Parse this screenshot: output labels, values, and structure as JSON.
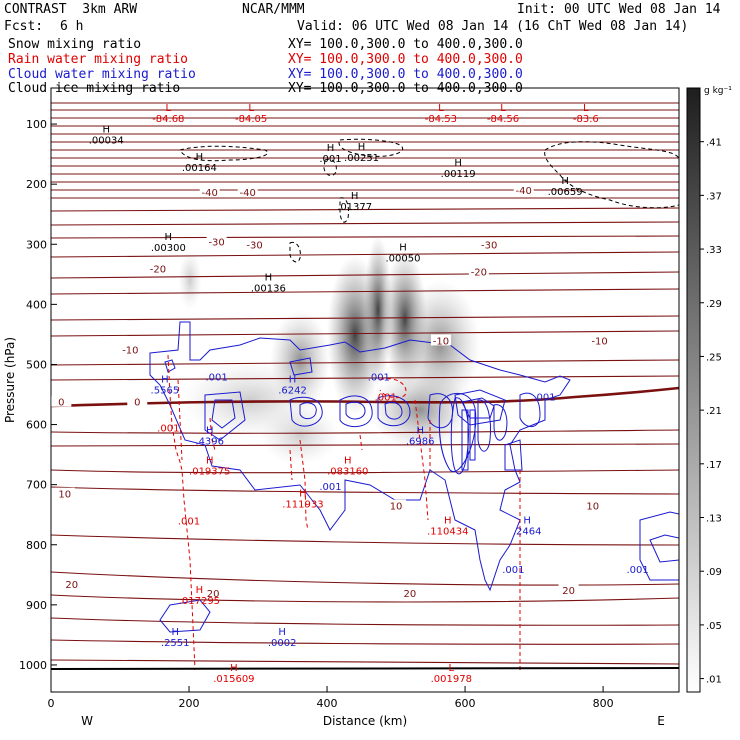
{
  "header": {
    "model": "CONTRAST  3km ARW",
    "center": "NCAR/MMM",
    "init": "Init: 00 UTC Wed 08 Jan 14",
    "fcst_label": "Fcst:",
    "fcst_value": "6 h",
    "valid": "Valid: 06 UTC Wed 08 Jan 14 (16 ChT Wed 08 Jan 14)"
  },
  "fields": [
    {
      "name": "Snow mixing ratio",
      "xy": "XY= 100.0,300.0 to 400.0,300.0",
      "color": "#000000"
    },
    {
      "name": "Rain water mixing ratio",
      "xy": "XY= 100.0,300.0 to 400.0,300.0",
      "color": "#e00000"
    },
    {
      "name": "Cloud water mixing ratio",
      "xy": "XY= 100.0,300.0 to 400.0,300.0",
      "color": "#1a1ad0"
    },
    {
      "name": "Cloud ice mixing ratio",
      "xy": "XY= 100.0,300.0 to 400.0,300.0",
      "color": "#000000"
    }
  ],
  "chart_data": {
    "type": "heatmap",
    "xlabel": "Distance (km)",
    "ylabel": "Pressure (hPa)",
    "xlim": [
      0,
      910
    ],
    "ylim_hpa": [
      40,
      1045
    ],
    "x_ticks": [
      0,
      200,
      400,
      600,
      800
    ],
    "y_ticks": [
      100,
      200,
      300,
      400,
      500,
      600,
      700,
      800,
      900,
      1000
    ],
    "x_end_labels": {
      "left": "W",
      "right": "E"
    },
    "colorbar": {
      "unit": "g kg⁻¹",
      "ticks": [
        ".41",
        ".37",
        ".33",
        ".29",
        ".25",
        ".21",
        ".17",
        ".13",
        ".09",
        ".05",
        ".01"
      ],
      "max": 0.45,
      "min": 0.0
    },
    "temperature_labels": [
      {
        "text": "-40",
        "x": 230,
        "p": 213
      },
      {
        "text": "-40",
        "x": 285,
        "p": 213
      },
      {
        "text": "-40",
        "x": 685,
        "p": 210
      },
      {
        "text": "-30",
        "x": 240,
        "p": 295
      },
      {
        "text": "-30",
        "x": 295,
        "p": 300
      },
      {
        "text": "-30",
        "x": 635,
        "p": 300
      },
      {
        "text": "-20",
        "x": 155,
        "p": 340
      },
      {
        "text": "-20",
        "x": 620,
        "p": 345
      },
      {
        "text": "-10",
        "x": 115,
        "p": 475
      },
      {
        "text": "-10",
        "x": 565,
        "p": 460
      },
      {
        "text": "-10",
        "x": 795,
        "p": 460
      },
      {
        "text": "0",
        "x": 15,
        "p": 562
      },
      {
        "text": "0",
        "x": 125,
        "p": 562
      },
      {
        "text": "10",
        "x": 20,
        "p": 715
      },
      {
        "text": "10",
        "x": 500,
        "p": 735
      },
      {
        "text": "10",
        "x": 785,
        "p": 735
      },
      {
        "text": "20",
        "x": 30,
        "p": 865
      },
      {
        "text": "20",
        "x": 235,
        "p": 880
      },
      {
        "text": "20",
        "x": 520,
        "p": 880
      },
      {
        "text": "20",
        "x": 750,
        "p": 875
      }
    ],
    "highs_lows": [
      {
        "mark": "L",
        "value": "-84.68",
        "x": 170,
        "p": 78,
        "color": "#e00000"
      },
      {
        "mark": "L",
        "value": "-84.05",
        "x": 290,
        "p": 78,
        "color": "#e00000"
      },
      {
        "mark": "L",
        "value": "-84.53",
        "x": 565,
        "p": 78,
        "color": "#e00000"
      },
      {
        "mark": "L",
        "value": "-84.56",
        "x": 655,
        "p": 78,
        "color": "#e00000"
      },
      {
        "mark": "L",
        "value": "-83.6",
        "x": 775,
        "p": 78,
        "color": "#e00000"
      },
      {
        "mark": "H",
        "value": ".00034",
        "x": 80,
        "p": 114,
        "color": "#000000"
      },
      {
        "mark": "H",
        "value": ".00164",
        "x": 215,
        "p": 160,
        "color": "#000000"
      },
      {
        "mark": "H",
        "value": ".001",
        "x": 405,
        "p": 145,
        "color": "#000000"
      },
      {
        "mark": "H",
        "value": ".00251",
        "x": 450,
        "p": 143,
        "color": "#000000"
      },
      {
        "mark": "H",
        "value": ".00119",
        "x": 590,
        "p": 170,
        "color": "#000000"
      },
      {
        "mark": "H",
        "value": ".00659",
        "x": 745,
        "p": 200,
        "color": "#000000"
      },
      {
        "mark": "H",
        "value": ".01377",
        "x": 440,
        "p": 225,
        "color": "#000000"
      },
      {
        "mark": "H",
        "value": ".00300",
        "x": 170,
        "p": 293,
        "color": "#000000"
      },
      {
        "mark": "H",
        "value": ".00136",
        "x": 315,
        "p": 360,
        "color": "#000000"
      },
      {
        "mark": "H",
        "value": ".00050",
        "x": 510,
        "p": 310,
        "color": "#000000"
      },
      {
        "mark": "H",
        "value": ".5565",
        "x": 165,
        "p": 530,
        "color": "#1a1ad0"
      },
      {
        "mark": "H",
        "value": ".6242",
        "x": 350,
        "p": 530,
        "color": "#1a1ad0"
      },
      {
        "mark": "H",
        "value": ".4396",
        "x": 230,
        "p": 615,
        "color": "#1a1ad0"
      },
      {
        "mark": "H",
        "value": ".6986",
        "x": 535,
        "p": 615,
        "color": "#1a1ad0"
      },
      {
        "mark": "H",
        "value": ".019375",
        "x": 230,
        "p": 665,
        "color": "#e00000"
      },
      {
        "mark": "H",
        "value": ".083160",
        "x": 430,
        "p": 665,
        "color": "#e00000"
      },
      {
        "mark": "H",
        "value": ".111933",
        "x": 365,
        "p": 720,
        "color": "#e00000"
      },
      {
        "mark": "H",
        "value": ".110434",
        "x": 575,
        "p": 765,
        "color": "#e00000"
      },
      {
        "mark": "H",
        "value": ".2464",
        "x": 690,
        "p": 765,
        "color": "#1a1ad0"
      },
      {
        "mark": "H",
        "value": ".017295",
        "x": 215,
        "p": 880,
        "color": "#e00000"
      },
      {
        "mark": "H",
        "value": ".2551",
        "x": 180,
        "p": 950,
        "color": "#1a1ad0"
      },
      {
        "mark": "H",
        "value": ".0002",
        "x": 335,
        "p": 950,
        "color": "#1a1ad0"
      },
      {
        "mark": "H",
        "value": ".015609",
        "x": 265,
        "p": 1010,
        "color": "#e00000"
      },
      {
        "mark": "L",
        "value": ".001978",
        "x": 580,
        "p": 1010,
        "color": "#e00000"
      }
    ],
    "contour_labels": [
      {
        "text": ".001",
        "x": 240,
        "p": 520,
        "color": "#1a1ad0"
      },
      {
        "text": ".001",
        "x": 475,
        "p": 520,
        "color": "#1a1ad0"
      },
      {
        "text": ".001",
        "x": 715,
        "p": 553,
        "color": "#1a1ad0"
      },
      {
        "text": ".001",
        "x": 405,
        "p": 702,
        "color": "#1a1ad0"
      },
      {
        "text": ".001",
        "x": 850,
        "p": 840,
        "color": "#1a1ad0"
      },
      {
        "text": ".001",
        "x": 670,
        "p": 840,
        "color": "#1a1ad0"
      },
      {
        "text": ".001",
        "x": 170,
        "p": 605,
        "color": "#e00000"
      },
      {
        "text": ".001",
        "x": 200,
        "p": 760,
        "color": "#e00000"
      },
      {
        "text": ".001",
        "x": 485,
        "p": 553,
        "color": "#e00000"
      }
    ]
  }
}
